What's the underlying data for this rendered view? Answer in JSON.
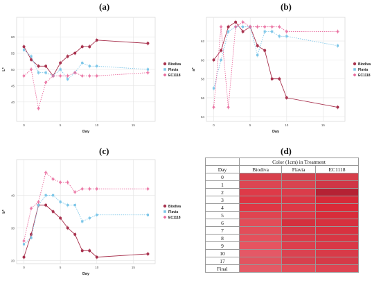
{
  "labels": {
    "a": "(a)",
    "b": "(b)",
    "c": "(c)",
    "d": "(d)"
  },
  "chart_data": [
    {
      "type": "line",
      "panel": "a",
      "xlabel": "Day",
      "ylabel": "L*",
      "xlim": [
        -1,
        18
      ],
      "ylim": [
        34,
        66
      ],
      "xticks": [
        0,
        5,
        10,
        15
      ],
      "yticks": [
        40,
        45,
        50,
        55,
        60
      ],
      "grid": true,
      "legend": "right",
      "x": [
        0,
        1,
        2,
        3,
        4,
        5,
        6,
        7,
        8,
        9,
        10,
        17
      ],
      "series": [
        {
          "name": "Biodiva",
          "color": "#a8324e",
          "dashed": false,
          "values": [
            57,
            53,
            51,
            51,
            48,
            52,
            54,
            55,
            57,
            57,
            59,
            58
          ]
        },
        {
          "name": "Flavia",
          "color": "#7cc6e8",
          "dashed": true,
          "values": [
            56,
            54,
            49,
            49,
            48,
            50,
            47,
            49,
            52,
            51,
            51,
            50
          ]
        },
        {
          "name": "EC1118",
          "color": "#e8669a",
          "dashed": true,
          "values": [
            48,
            50,
            38,
            46,
            48,
            48,
            48,
            49,
            48,
            48,
            48,
            49
          ]
        }
      ]
    },
    {
      "type": "line",
      "panel": "b",
      "xlabel": "Day",
      "ylabel": "a*",
      "xlim": [
        -1,
        18
      ],
      "ylim": [
        53.5,
        64.5
      ],
      "xticks": [
        0,
        5,
        10,
        15
      ],
      "yticks": [
        54,
        56,
        58,
        60,
        62
      ],
      "grid": true,
      "legend": "right",
      "x": [
        0,
        1,
        2,
        3,
        4,
        5,
        6,
        7,
        8,
        9,
        10,
        17
      ],
      "series": [
        {
          "name": "Biodiva",
          "color": "#a8324e",
          "dashed": false,
          "values": [
            60,
            61,
            63.5,
            64,
            63,
            63.5,
            61.5,
            61,
            58,
            58,
            56,
            55
          ]
        },
        {
          "name": "Flavia",
          "color": "#7cc6e8",
          "dashed": true,
          "values": [
            57,
            60,
            63,
            63.5,
            63.5,
            63.5,
            60.5,
            63,
            63,
            62.5,
            62.5,
            61.5
          ]
        },
        {
          "name": "EC1118",
          "color": "#e8669a",
          "dashed": true,
          "values": [
            55,
            63.5,
            55,
            63.5,
            64,
            63.5,
            63.5,
            63.5,
            63.5,
            63.5,
            63,
            63
          ]
        }
      ]
    },
    {
      "type": "line",
      "panel": "c",
      "xlabel": "Day",
      "ylabel": "b*",
      "xlim": [
        -1,
        18
      ],
      "ylim": [
        19,
        51
      ],
      "xticks": [
        0,
        5,
        10,
        15
      ],
      "yticks": [
        20,
        30,
        40
      ],
      "grid": true,
      "legend": "right",
      "x": [
        0,
        1,
        2,
        3,
        4,
        5,
        6,
        7,
        8,
        9,
        10,
        17
      ],
      "series": [
        {
          "name": "Biodiva",
          "color": "#a8324e",
          "dashed": false,
          "values": [
            21,
            28,
            37,
            37,
            35,
            33,
            30,
            28,
            23,
            23,
            21,
            22
          ]
        },
        {
          "name": "Flavia",
          "color": "#7cc6e8",
          "dashed": true,
          "values": [
            25,
            27,
            37,
            40,
            40,
            38,
            37,
            37,
            32,
            33,
            34,
            34
          ]
        },
        {
          "name": "EC1118",
          "color": "#e8669a",
          "dashed": true,
          "values": [
            26,
            36,
            38,
            47,
            45,
            44,
            44,
            41,
            42,
            42,
            42,
            42
          ]
        }
      ]
    },
    {
      "type": "table",
      "panel": "d",
      "title": "Color (1cm) in Treatment",
      "columns": [
        "Day",
        "Biodiva",
        "Flavia",
        "EC1118"
      ],
      "rows": [
        "0",
        "1",
        "2",
        "3",
        "4",
        "5",
        "6",
        "7",
        "8",
        "9",
        "10",
        "17",
        "Final"
      ],
      "cell_colors": [
        [
          "#d8404c",
          "#d3424e",
          "#d63e4a"
        ],
        [
          "#dc4652",
          "#d84450",
          "#cf3646"
        ],
        [
          "#de3a48",
          "#da3c4a",
          "#b52234"
        ],
        [
          "#dd3442",
          "#db3644",
          "#d62a38"
        ],
        [
          "#df3644",
          "#dd3846",
          "#da2a38"
        ],
        [
          "#e04450",
          "#dc3a48",
          "#d82c3a"
        ],
        [
          "#e24c58",
          "#d4303e",
          "#d6303e"
        ],
        [
          "#e24e5a",
          "#d63846",
          "#d83240"
        ],
        [
          "#e4505c",
          "#da3c4a",
          "#d83644"
        ],
        [
          "#e65460",
          "#dc3e4c",
          "#d93846"
        ],
        [
          "#e45866",
          "#da4250",
          "#d83a48"
        ],
        [
          "#e25460",
          "#d8404e",
          "#d63a48"
        ],
        [
          "#e45a66",
          "#e24c58",
          "#de4452"
        ]
      ]
    }
  ]
}
